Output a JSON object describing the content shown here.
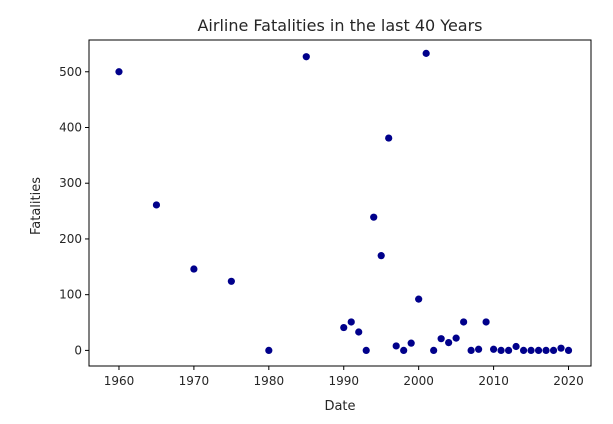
{
  "chart_data": {
    "type": "scatter",
    "title": "Airline Fatalities in the last 40 Years",
    "xlabel": "Date",
    "ylabel": "Fatalities",
    "xlim": [
      1956,
      2023
    ],
    "ylim": [
      -28,
      557
    ],
    "xticks": [
      1960,
      1970,
      1980,
      1990,
      2000,
      2010,
      2020
    ],
    "yticks": [
      0,
      100,
      200,
      300,
      400,
      500
    ],
    "grid": false,
    "marker_color": "#00008b",
    "series": [
      {
        "name": "Fatalities",
        "points": [
          [
            1960,
            500
          ],
          [
            1965,
            261
          ],
          [
            1970,
            146
          ],
          [
            1975,
            124
          ],
          [
            1980,
            0
          ],
          [
            1985,
            527
          ],
          [
            1990,
            41
          ],
          [
            1991,
            51
          ],
          [
            1992,
            33
          ],
          [
            1993,
            0
          ],
          [
            1994,
            239
          ],
          [
            1995,
            170
          ],
          [
            1996,
            381
          ],
          [
            1997,
            8
          ],
          [
            1998,
            0
          ],
          [
            1999,
            13
          ],
          [
            2000,
            92
          ],
          [
            2001,
            533
          ],
          [
            2002,
            0
          ],
          [
            2003,
            21
          ],
          [
            2004,
            14
          ],
          [
            2005,
            22
          ],
          [
            2006,
            51
          ],
          [
            2007,
            0
          ],
          [
            2008,
            2
          ],
          [
            2009,
            51
          ],
          [
            2010,
            2
          ],
          [
            2011,
            0
          ],
          [
            2012,
            0
          ],
          [
            2013,
            7
          ],
          [
            2014,
            0
          ],
          [
            2015,
            0
          ],
          [
            2016,
            0
          ],
          [
            2017,
            0
          ],
          [
            2018,
            0
          ],
          [
            2019,
            4
          ],
          [
            2020,
            0
          ]
        ]
      }
    ]
  }
}
